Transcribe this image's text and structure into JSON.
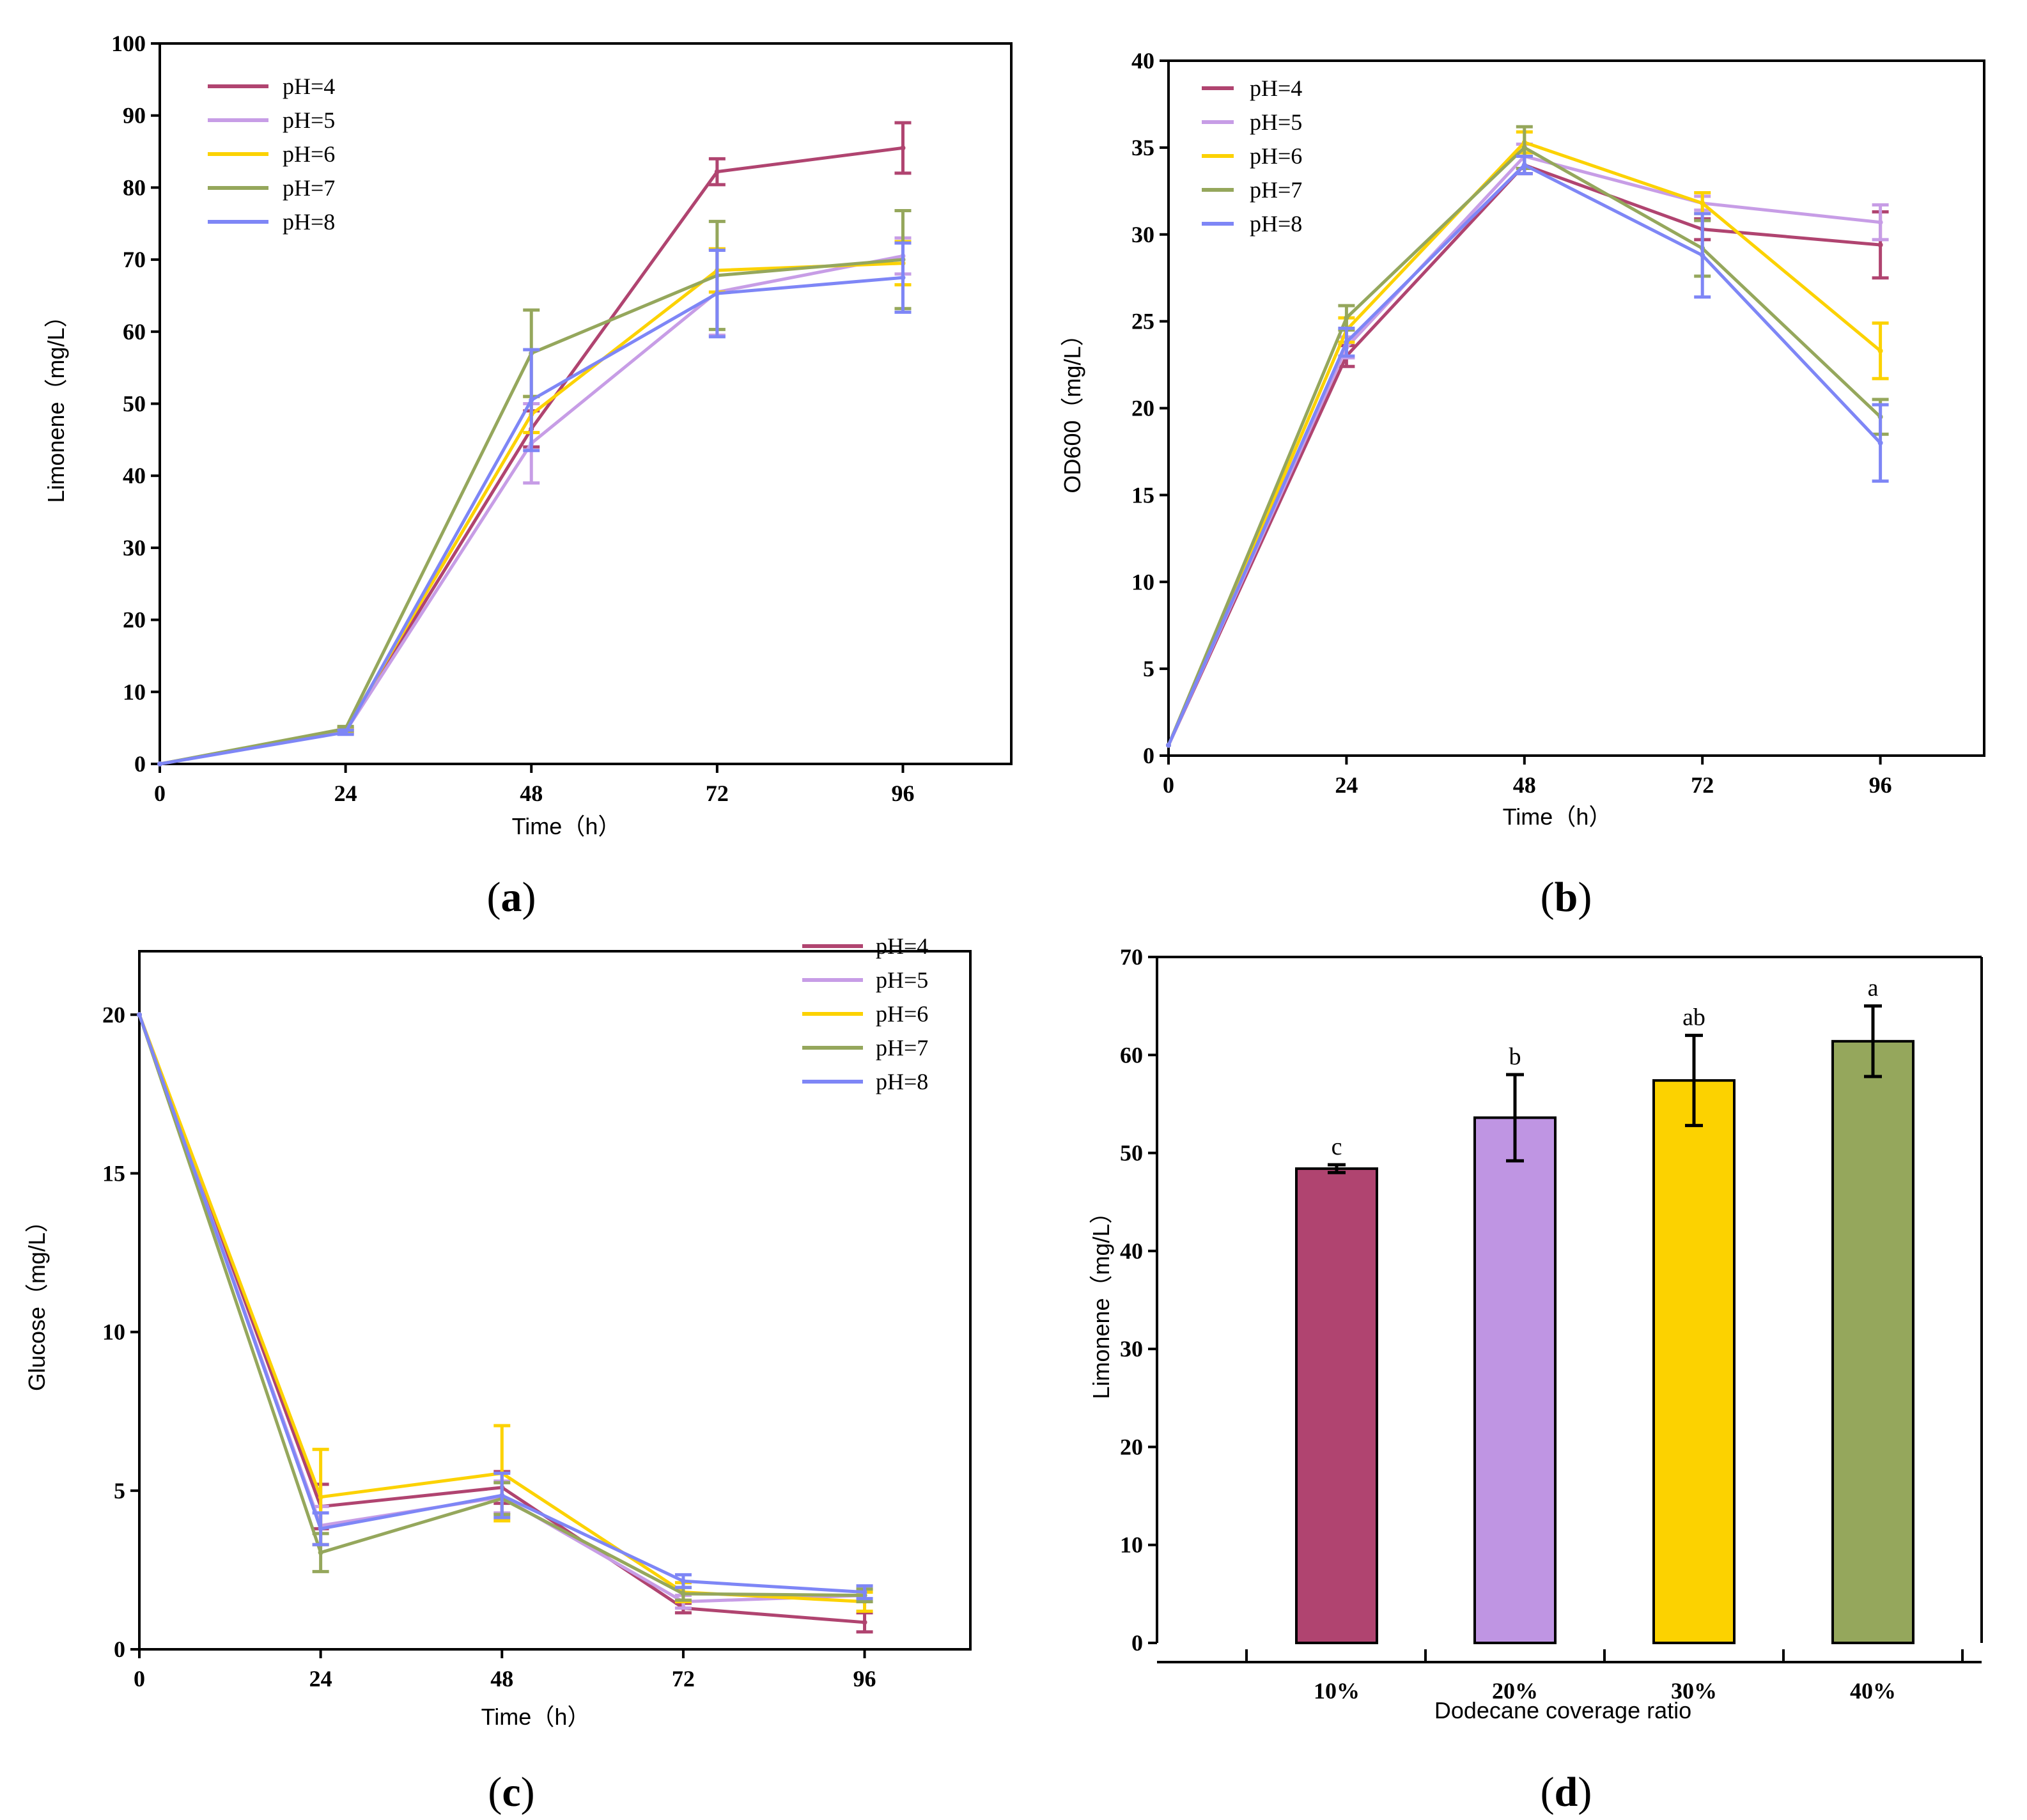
{
  "chart_data": [
    {
      "id": "a",
      "type": "line",
      "panel_label": "a",
      "xlabel": "Time（h）",
      "ylabel": "Limonene（mg/L）",
      "x": [
        0,
        24,
        48,
        72,
        96
      ],
      "xlim": [
        0,
        110
      ],
      "ylim": [
        0,
        100
      ],
      "yticks": [
        0,
        10,
        20,
        30,
        40,
        50,
        60,
        70,
        80,
        90,
        100
      ],
      "legend_position": "top-left",
      "series": [
        {
          "name": "pH=4",
          "color": "#b04470",
          "values": [
            0,
            4.6,
            46.5,
            82.2,
            85.5
          ],
          "errors": [
            0,
            0.3,
            2.5,
            1.8,
            3.5
          ]
        },
        {
          "name": "pH=5",
          "color": "#c79de6",
          "values": [
            0,
            4.5,
            44.5,
            65.5,
            70.5
          ],
          "errors": [
            0,
            0.3,
            5.5,
            6,
            2.5
          ]
        },
        {
          "name": "pH=6",
          "color": "#fcd200",
          "values": [
            0,
            4.7,
            48.5,
            68.5,
            69.5
          ],
          "errors": [
            0,
            0.3,
            2.5,
            3,
            3
          ]
        },
        {
          "name": "pH=7",
          "color": "#95a75c",
          "values": [
            0,
            4.9,
            57,
            67.8,
            70
          ],
          "errors": [
            0,
            0.3,
            6,
            7.5,
            6.8
          ]
        },
        {
          "name": "pH=8",
          "color": "#7e86f6",
          "values": [
            0,
            4.4,
            50.5,
            65.3,
            67.5
          ],
          "errors": [
            0,
            0.3,
            7,
            6,
            4.8
          ]
        }
      ]
    },
    {
      "id": "b",
      "type": "line",
      "panel_label": "b",
      "xlabel": "Time（h）",
      "ylabel": "OD600（mg/L）",
      "x": [
        0,
        24,
        48,
        72,
        96
      ],
      "xlim": [
        0,
        110
      ],
      "ylim": [
        0,
        40
      ],
      "yticks": [
        0,
        5,
        10,
        15,
        20,
        25,
        30,
        35,
        40
      ],
      "legend_position": "top-left",
      "series": [
        {
          "name": "pH=4",
          "color": "#b04470",
          "values": [
            0.6,
            23,
            34,
            30.3,
            29.4
          ],
          "errors": [
            0,
            0.6,
            0.5,
            0.6,
            1.9
          ]
        },
        {
          "name": "pH=5",
          "color": "#c79de6",
          "values": [
            0.6,
            23.5,
            34.5,
            31.8,
            30.7
          ],
          "errors": [
            0,
            0.6,
            0.7,
            0.4,
            1
          ]
        },
        {
          "name": "pH=6",
          "color": "#fcd200",
          "values": [
            0.6,
            24.5,
            35.3,
            31.8,
            23.3
          ],
          "errors": [
            0,
            0.7,
            0.6,
            0.6,
            1.6
          ]
        },
        {
          "name": "pH=7",
          "color": "#95a75c",
          "values": [
            0.6,
            25.2,
            35,
            29.2,
            19.5
          ],
          "errors": [
            0,
            0.7,
            1.2,
            1.6,
            1
          ]
        },
        {
          "name": "pH=8",
          "color": "#7e86f6",
          "values": [
            0.6,
            23.8,
            34,
            28.8,
            18
          ],
          "errors": [
            0,
            0.8,
            0.5,
            2.4,
            2.2
          ]
        }
      ]
    },
    {
      "id": "c",
      "type": "line",
      "panel_label": "c",
      "xlabel": "Time（h）",
      "ylabel": "Glucose（mg/L）",
      "x": [
        0,
        24,
        48,
        72,
        96
      ],
      "xlim": [
        0,
        110
      ],
      "ylim": [
        0,
        22
      ],
      "yticks": [
        0,
        5,
        10,
        15,
        20
      ],
      "legend_position": "top-right",
      "series": [
        {
          "name": "pH=4",
          "color": "#b04470",
          "values": [
            20,
            4.5,
            5.1,
            1.3,
            0.85
          ],
          "errors": [
            0,
            0.7,
            0.5,
            0.15,
            0.3
          ]
        },
        {
          "name": "pH=5",
          "color": "#c79de6",
          "values": [
            20,
            3.9,
            4.8,
            1.5,
            1.7
          ],
          "errors": [
            0,
            0.6,
            0.5,
            0.2,
            0.2
          ]
        },
        {
          "name": "pH=6",
          "color": "#fcd200",
          "values": [
            20,
            4.8,
            5.55,
            1.8,
            1.5
          ],
          "errors": [
            0,
            1.5,
            1.5,
            0.3,
            0.3
          ]
        },
        {
          "name": "pH=7",
          "color": "#95a75c",
          "values": [
            20,
            3.05,
            4.75,
            1.75,
            1.7
          ],
          "errors": [
            0,
            0.6,
            0.5,
            0.2,
            0.2
          ]
        },
        {
          "name": "pH=8",
          "color": "#7e86f6",
          "values": [
            20,
            3.8,
            4.85,
            2.15,
            1.8
          ],
          "errors": [
            0,
            0.5,
            0.7,
            0.2,
            0.2
          ]
        }
      ]
    },
    {
      "id": "d",
      "type": "bar",
      "panel_label": "d",
      "xlabel": "Dodecane coverage ratio",
      "ylabel": "Limonene（mg/L）",
      "categories": [
        "10%",
        "20%",
        "30%",
        "40%"
      ],
      "values": [
        48.4,
        53.6,
        57.4,
        61.4
      ],
      "errors": [
        0.4,
        4.4,
        4.6,
        3.6
      ],
      "colors": [
        "#b04470",
        "#bf95e3",
        "#fcd200",
        "#95a75c"
      ],
      "significance": [
        "c",
        "b",
        "ab",
        "a"
      ],
      "ylim": [
        0,
        70
      ],
      "yticks": [
        0,
        10,
        20,
        30,
        40,
        50,
        60,
        70
      ]
    }
  ]
}
